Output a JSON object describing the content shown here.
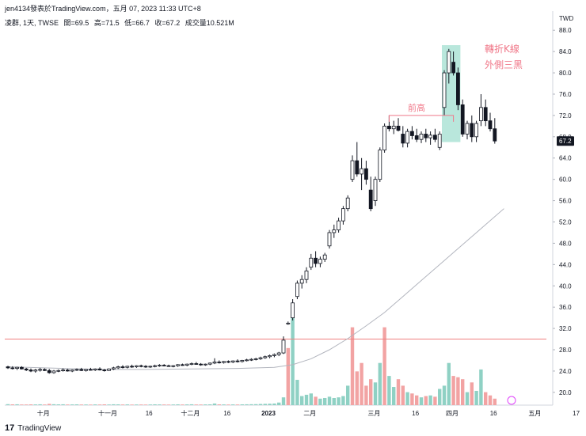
{
  "header": {
    "publish_line": "jen4134發表於TradingView.com，五月 07, 2023 11:33 UTC+8",
    "symbol": "凌群, 1天, TWSE",
    "ohlc": {
      "open_label": "開=69.5",
      "high_label": "高=71.5",
      "low_label": "低=66.7",
      "close_label": "收=67.2",
      "volume_label": "成交量10.521M"
    }
  },
  "currency": "TWD",
  "brand": {
    "name": "TradingView"
  },
  "colors": {
    "up_body": "#ffffff",
    "candle_stroke": "#131722",
    "down_body": "#131722",
    "vol_up": "#8fd1c4",
    "vol_down": "#f2a3a3",
    "ma_line": "#b2b5be",
    "hline": "#f08080",
    "highlight": "#7fd3c0",
    "annotation": "#f0798a",
    "price_tag_bg": "#131722"
  },
  "chart_data": {
    "type": "candlestick",
    "y_axis": {
      "unit": "TWD",
      "ticks": [
        20.0,
        24.0,
        28.0,
        32.0,
        36.0,
        40.0,
        44.0,
        48.0,
        52.0,
        56.0,
        60.0,
        64.0,
        68.0,
        72.0,
        76.0,
        80.0,
        84.0,
        88.0
      ],
      "ylim": [
        17.6,
        91.6
      ]
    },
    "x_axis": {
      "ticks": [
        "十月",
        "十一月",
        "16",
        "十二月",
        "16",
        "2023",
        "二月",
        "三月",
        "16",
        "四月",
        "16",
        "五月",
        "17"
      ]
    },
    "last_price": "67.2",
    "horizontal_line": 30.0,
    "annotations": [
      {
        "text": "前高",
        "level": 72.0
      },
      {
        "text": "轉折K線",
        "level": 84.5
      },
      {
        "text": "外側三黑",
        "level": 81.5
      }
    ],
    "candles": [
      [
        24.8,
        25.0,
        24.4,
        24.6
      ],
      [
        24.6,
        24.9,
        24.3,
        24.5
      ],
      [
        24.5,
        24.8,
        24.2,
        24.7
      ],
      [
        24.7,
        24.9,
        24.3,
        24.4
      ],
      [
        24.4,
        24.6,
        24.0,
        24.2
      ],
      [
        24.2,
        24.5,
        23.8,
        24.0
      ],
      [
        24.0,
        24.4,
        23.7,
        24.2
      ],
      [
        24.2,
        24.6,
        23.9,
        24.3
      ],
      [
        24.3,
        24.5,
        24.0,
        24.1
      ],
      [
        24.1,
        24.4,
        23.5,
        23.7
      ],
      [
        23.7,
        24.2,
        23.5,
        24.0
      ],
      [
        24.0,
        24.3,
        23.8,
        24.1
      ],
      [
        24.1,
        24.5,
        23.9,
        24.2
      ],
      [
        24.2,
        24.4,
        23.9,
        24.0
      ],
      [
        24.0,
        24.3,
        23.8,
        24.2
      ],
      [
        24.2,
        24.5,
        24.0,
        24.3
      ],
      [
        24.3,
        24.6,
        24.0,
        24.1
      ],
      [
        24.1,
        24.4,
        23.9,
        24.3
      ],
      [
        24.3,
        24.6,
        24.1,
        24.2
      ],
      [
        24.2,
        24.5,
        24.0,
        24.4
      ],
      [
        24.4,
        24.7,
        24.1,
        24.2
      ],
      [
        24.2,
        24.4,
        23.9,
        24.1
      ],
      [
        24.1,
        24.5,
        24.0,
        24.4
      ],
      [
        24.4,
        24.8,
        24.2,
        24.6
      ],
      [
        24.6,
        25.0,
        24.4,
        24.8
      ],
      [
        24.8,
        25.1,
        24.5,
        24.7
      ],
      [
        24.7,
        25.0,
        24.5,
        24.9
      ],
      [
        24.9,
        25.2,
        24.6,
        24.8
      ],
      [
        24.8,
        25.1,
        24.6,
        25.0
      ],
      [
        25.0,
        25.2,
        24.7,
        24.9
      ],
      [
        24.9,
        25.1,
        24.6,
        24.8
      ],
      [
        24.8,
        25.0,
        24.6,
        24.9
      ],
      [
        24.9,
        25.2,
        24.7,
        25.0
      ],
      [
        25.0,
        25.3,
        24.8,
        25.1
      ],
      [
        25.1,
        25.3,
        24.9,
        25.0
      ],
      [
        25.0,
        25.2,
        24.8,
        24.9
      ],
      [
        24.9,
        25.1,
        24.7,
        25.0
      ],
      [
        25.0,
        25.3,
        24.8,
        25.2
      ],
      [
        25.2,
        25.4,
        25.0,
        25.1
      ],
      [
        25.1,
        25.4,
        24.9,
        25.3
      ],
      [
        25.3,
        25.6,
        25.1,
        25.4
      ],
      [
        25.4,
        25.7,
        25.2,
        25.3
      ],
      [
        25.3,
        25.5,
        25.0,
        25.2
      ],
      [
        25.2,
        25.4,
        25.0,
        25.3
      ],
      [
        25.3,
        25.6,
        25.1,
        25.5
      ],
      [
        25.5,
        26.4,
        25.3,
        25.7
      ],
      [
        25.7,
        26.0,
        25.4,
        25.6
      ],
      [
        25.6,
        25.9,
        25.4,
        25.8
      ],
      [
        25.8,
        26.0,
        25.5,
        25.7
      ],
      [
        25.7,
        26.0,
        25.5,
        25.9
      ],
      [
        25.9,
        26.2,
        25.6,
        25.8
      ],
      [
        25.8,
        26.1,
        25.6,
        26.0
      ],
      [
        26.0,
        26.3,
        25.8,
        26.1
      ],
      [
        26.1,
        26.4,
        25.9,
        26.2
      ],
      [
        26.2,
        26.5,
        26.0,
        26.3
      ],
      [
        26.3,
        26.7,
        26.1,
        26.5
      ],
      [
        26.5,
        26.9,
        26.3,
        26.7
      ],
      [
        26.7,
        27.1,
        26.4,
        26.9
      ],
      [
        26.9,
        27.3,
        26.6,
        27.1
      ],
      [
        27.1,
        27.6,
        26.8,
        27.4
      ],
      [
        27.4,
        30.5,
        27.2,
        29.8
      ],
      [
        33.0,
        33.3,
        32.7,
        33.0
      ],
      [
        34.0,
        37.5,
        33.5,
        36.8
      ],
      [
        38.0,
        41.0,
        37.5,
        40.5
      ],
      [
        40.5,
        42.0,
        39.5,
        41.2
      ],
      [
        41.2,
        43.5,
        40.5,
        42.8
      ],
      [
        43.5,
        46.0,
        43.0,
        45.2
      ],
      [
        45.2,
        46.5,
        43.5,
        44.2
      ],
      [
        44.2,
        45.5,
        43.5,
        45.0
      ],
      [
        45.0,
        46.2,
        44.5,
        45.8
      ],
      [
        47.5,
        50.5,
        47.0,
        50.0
      ],
      [
        50.0,
        51.5,
        49.0,
        50.5
      ],
      [
        50.5,
        52.8,
        50.0,
        52.2
      ],
      [
        52.2,
        55.0,
        51.5,
        54.5
      ],
      [
        54.5,
        57.0,
        54.0,
        56.5
      ],
      [
        60.0,
        64.5,
        59.5,
        63.5
      ],
      [
        63.5,
        67.0,
        60.5,
        61.0
      ],
      [
        61.0,
        64.0,
        58.0,
        62.0
      ],
      [
        62.0,
        63.5,
        59.0,
        60.0
      ],
      [
        58.0,
        60.5,
        54.0,
        54.5
      ],
      [
        56.0,
        60.5,
        55.0,
        60.0
      ],
      [
        60.0,
        66.0,
        59.5,
        65.5
      ],
      [
        65.5,
        70.5,
        65.0,
        70.0
      ],
      [
        70.0,
        72.0,
        69.0,
        69.5
      ],
      [
        69.5,
        71.0,
        68.5,
        70.0
      ],
      [
        70.0,
        71.5,
        69.0,
        69.2
      ],
      [
        68.5,
        70.0,
        66.0,
        66.8
      ],
      [
        66.8,
        69.5,
        66.0,
        69.0
      ],
      [
        69.0,
        70.0,
        67.5,
        68.2
      ],
      [
        68.2,
        69.5,
        67.0,
        67.5
      ],
      [
        67.5,
        69.0,
        66.8,
        68.5
      ],
      [
        68.5,
        69.5,
        67.0,
        67.8
      ],
      [
        67.8,
        69.0,
        66.5,
        68.3
      ],
      [
        68.3,
        69.5,
        67.0,
        67.5
      ],
      [
        66.0,
        69.0,
        65.5,
        68.5
      ],
      [
        73.5,
        80.5,
        72.0,
        80.0
      ],
      [
        80.0,
        84.5,
        78.0,
        84.0
      ],
      [
        82.0,
        84.0,
        79.5,
        80.0
      ],
      [
        80.0,
        81.0,
        73.0,
        74.0
      ],
      [
        74.0,
        75.0,
        68.0,
        68.5
      ],
      [
        68.5,
        71.0,
        67.5,
        70.5
      ],
      [
        70.5,
        72.0,
        67.0,
        68.0
      ],
      [
        68.0,
        71.0,
        67.0,
        70.5
      ],
      [
        71.0,
        76.0,
        70.0,
        73.5
      ],
      [
        73.5,
        75.0,
        70.0,
        71.0
      ],
      [
        71.0,
        72.5,
        69.0,
        69.5
      ],
      [
        69.5,
        71.5,
        66.7,
        67.2
      ]
    ],
    "volumes": [
      [
        0.15,
        "u"
      ],
      [
        0.12,
        "d"
      ],
      [
        0.13,
        "u"
      ],
      [
        0.1,
        "d"
      ],
      [
        0.1,
        "d"
      ],
      [
        0.12,
        "d"
      ],
      [
        0.11,
        "u"
      ],
      [
        0.13,
        "u"
      ],
      [
        0.1,
        "d"
      ],
      [
        0.2,
        "d"
      ],
      [
        0.14,
        "u"
      ],
      [
        0.12,
        "u"
      ],
      [
        0.13,
        "u"
      ],
      [
        0.1,
        "d"
      ],
      [
        0.11,
        "u"
      ],
      [
        0.12,
        "u"
      ],
      [
        0.1,
        "d"
      ],
      [
        0.1,
        "u"
      ],
      [
        0.09,
        "d"
      ],
      [
        0.11,
        "u"
      ],
      [
        0.1,
        "d"
      ],
      [
        0.12,
        "d"
      ],
      [
        0.1,
        "u"
      ],
      [
        0.13,
        "u"
      ],
      [
        0.12,
        "u"
      ],
      [
        0.1,
        "d"
      ],
      [
        0.11,
        "u"
      ],
      [
        0.09,
        "d"
      ],
      [
        0.1,
        "u"
      ],
      [
        0.1,
        "d"
      ],
      [
        0.09,
        "d"
      ],
      [
        0.1,
        "u"
      ],
      [
        0.12,
        "u"
      ],
      [
        0.11,
        "u"
      ],
      [
        0.1,
        "d"
      ],
      [
        0.09,
        "d"
      ],
      [
        0.1,
        "u"
      ],
      [
        0.12,
        "u"
      ],
      [
        0.1,
        "d"
      ],
      [
        0.11,
        "u"
      ],
      [
        0.13,
        "u"
      ],
      [
        0.1,
        "d"
      ],
      [
        0.1,
        "d"
      ],
      [
        0.11,
        "u"
      ],
      [
        0.12,
        "u"
      ],
      [
        0.25,
        "u"
      ],
      [
        0.12,
        "d"
      ],
      [
        0.11,
        "u"
      ],
      [
        0.1,
        "d"
      ],
      [
        0.11,
        "u"
      ],
      [
        0.1,
        "d"
      ],
      [
        0.12,
        "u"
      ],
      [
        0.13,
        "u"
      ],
      [
        0.14,
        "u"
      ],
      [
        0.15,
        "u"
      ],
      [
        0.18,
        "u"
      ],
      [
        0.2,
        "u"
      ],
      [
        0.22,
        "u"
      ],
      [
        0.25,
        "u"
      ],
      [
        0.4,
        "u"
      ],
      [
        1.2,
        "u"
      ],
      [
        8.8,
        "d"
      ],
      [
        14.5,
        "u"
      ],
      [
        3.9,
        "u"
      ],
      [
        1.4,
        "u"
      ],
      [
        1.6,
        "u"
      ],
      [
        1.8,
        "u"
      ],
      [
        1.3,
        "d"
      ],
      [
        1.0,
        "u"
      ],
      [
        1.1,
        "u"
      ],
      [
        1.3,
        "u"
      ],
      [
        1.1,
        "u"
      ],
      [
        1.2,
        "u"
      ],
      [
        1.4,
        "u"
      ],
      [
        3.0,
        "u"
      ],
      [
        12.0,
        "d"
      ],
      [
        5.2,
        "d"
      ],
      [
        6.5,
        "d"
      ],
      [
        3.0,
        "d"
      ],
      [
        4.0,
        "d"
      ],
      [
        3.5,
        "u"
      ],
      [
        6.5,
        "u"
      ],
      [
        12.0,
        "d"
      ],
      [
        4.5,
        "u"
      ],
      [
        2.8,
        "u"
      ],
      [
        4.0,
        "d"
      ],
      [
        3.0,
        "d"
      ],
      [
        2.0,
        "u"
      ],
      [
        1.8,
        "d"
      ],
      [
        1.5,
        "d"
      ],
      [
        1.2,
        "u"
      ],
      [
        1.4,
        "d"
      ],
      [
        1.5,
        "u"
      ],
      [
        1.3,
        "d"
      ],
      [
        2.5,
        "u"
      ],
      [
        3.0,
        "u"
      ],
      [
        6.5,
        "u"
      ],
      [
        4.5,
        "d"
      ],
      [
        4.3,
        "d"
      ],
      [
        4.0,
        "d"
      ],
      [
        2.0,
        "u"
      ],
      [
        3.5,
        "d"
      ],
      [
        2.2,
        "u"
      ],
      [
        5.5,
        "u"
      ],
      [
        2.0,
        "d"
      ],
      [
        1.5,
        "d"
      ],
      [
        1.0,
        "d"
      ]
    ],
    "ma_line": [
      [
        0,
        24.8
      ],
      [
        10,
        24.55
      ],
      [
        20,
        24.3
      ],
      [
        30,
        24.3
      ],
      [
        40,
        24.4
      ],
      [
        50,
        24.5
      ],
      [
        58,
        24.7
      ],
      [
        62,
        25.2
      ],
      [
        66,
        26.3
      ],
      [
        70,
        28.0
      ],
      [
        74,
        30.1
      ],
      [
        78,
        32.5
      ],
      [
        82,
        35.0
      ],
      [
        86,
        38.0
      ],
      [
        90,
        41.0
      ],
      [
        94,
        44.0
      ],
      [
        98,
        47.0
      ],
      [
        102,
        50.0
      ],
      [
        106,
        53.0
      ],
      [
        108,
        54.5
      ]
    ]
  }
}
